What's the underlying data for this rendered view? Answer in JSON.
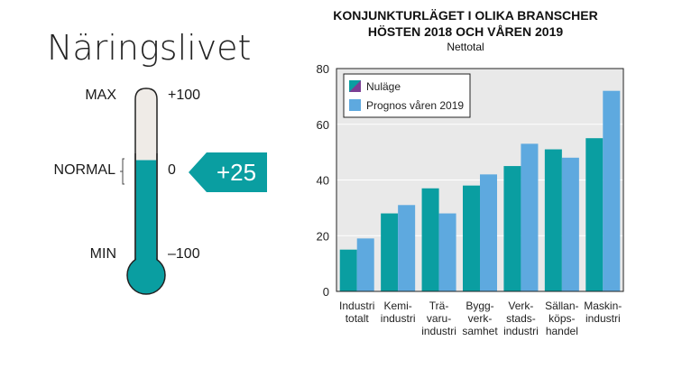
{
  "gauge": {
    "title": "Näringslivet",
    "max_label": "MAX",
    "normal_label": "NORMAL",
    "min_label": "MIN",
    "scale_max": "+100",
    "scale_mid": "0",
    "scale_min": "–100",
    "value_label": "+25",
    "value": 25,
    "range": [
      -100,
      100
    ],
    "colors": {
      "fill": "#0a9ea1",
      "empty": "#efebe7",
      "badge": "#0a9ea1"
    }
  },
  "chart_data": {
    "type": "bar",
    "title_lines": [
      "KONJUNKTURLÄGET I OLIKA BRANSCHER",
      "HÖSTEN 2018 OCH VÅREN 2019"
    ],
    "subtitle": "Nettotal",
    "categories": [
      [
        "Industri",
        "totalt"
      ],
      [
        "Kemi-",
        "industri"
      ],
      [
        "Trä-",
        "varu-",
        "industri"
      ],
      [
        "Bygg-",
        "verk-",
        "samhet"
      ],
      [
        "Verk-",
        "stads-",
        "industri"
      ],
      [
        "Sällan-",
        "köps-",
        "handel"
      ],
      [
        "Maskin-",
        "industri"
      ]
    ],
    "series": [
      {
        "name": "Nuläge",
        "values": [
          15,
          28,
          37,
          38,
          45,
          51,
          55
        ],
        "color": "#0a9ea1"
      },
      {
        "name": "Prognos våren 2019",
        "values": [
          19,
          31,
          28,
          42,
          53,
          48,
          72
        ],
        "color": "#5ea9df"
      }
    ],
    "ylim": [
      0,
      80
    ],
    "yticks": [
      "0",
      "20",
      "40",
      "60",
      "80"
    ],
    "grid": true,
    "legend_position": "top-left",
    "plot_background": "#e9e9e9"
  }
}
